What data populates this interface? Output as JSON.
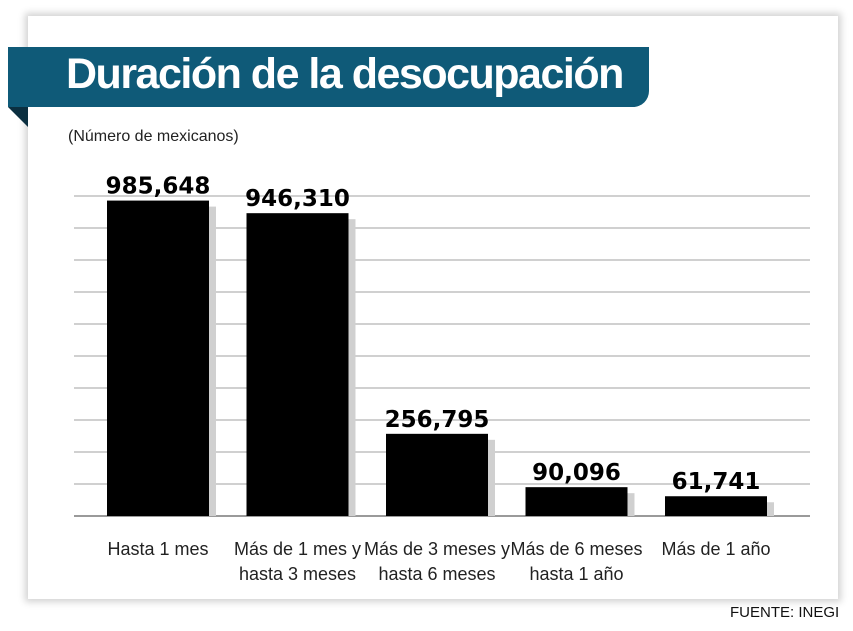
{
  "title": "Duración de la desocupación",
  "subtitle": "(Número de mexicanos)",
  "source": "FUENTE: INEGI",
  "colors": {
    "title_band": "#0f5a78",
    "bars": "#000000",
    "bar_shadow": "#d0d0d0",
    "grid": "#b5b5b5"
  },
  "chart_data": {
    "type": "bar",
    "categories": [
      [
        "Hasta 1 mes"
      ],
      [
        "Más de 1 mes y",
        "hasta 3 meses"
      ],
      [
        "Más de 3 meses y",
        "hasta 6 meses"
      ],
      [
        "Más de 6 meses",
        "hasta 1 año"
      ],
      [
        "Más de 1 año"
      ]
    ],
    "values": [
      985648,
      946310,
      256795,
      90096,
      61741
    ],
    "value_labels": [
      "985,648",
      "946,310",
      "256,795",
      "90,096",
      "61,741"
    ],
    "ylim": [
      0,
      1000000
    ],
    "grid": true,
    "grid_step": 100000
  }
}
